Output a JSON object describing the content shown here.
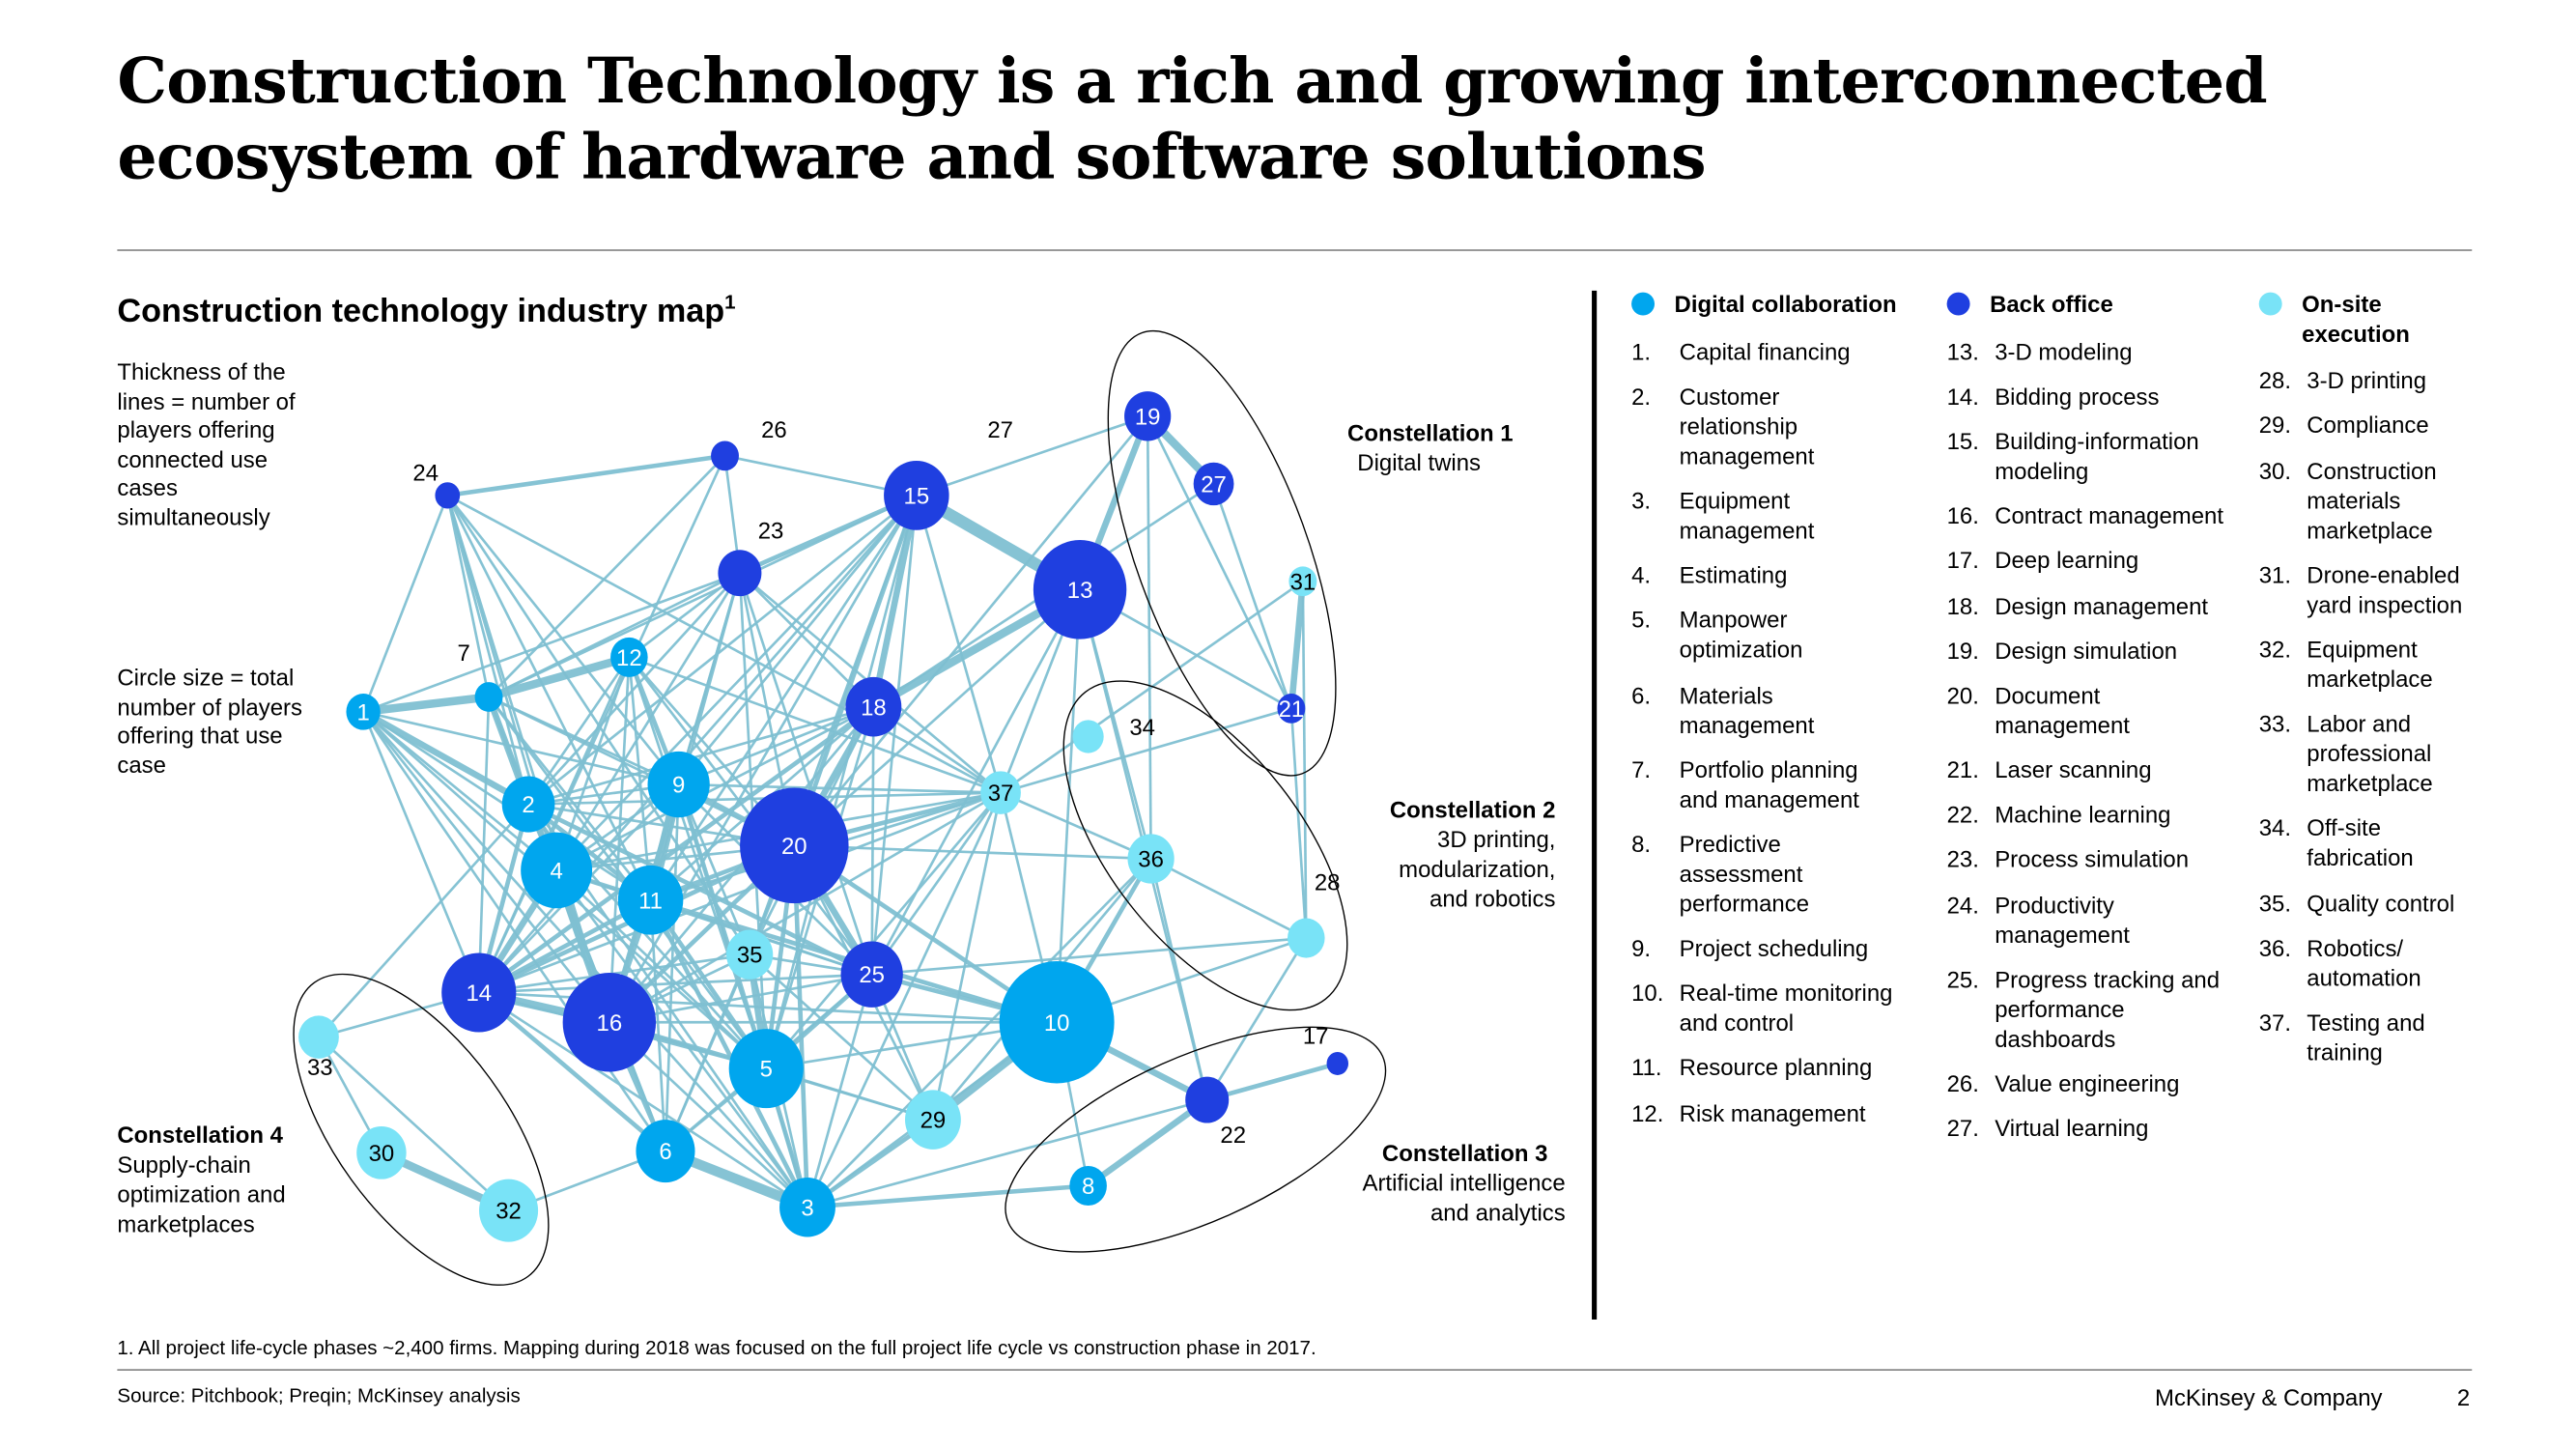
{
  "title": "Construction Technology is a rich and growing interconnected ecosystem of hardware and software solutions",
  "subtitle": "Construction technology industry map",
  "subtitle_sup": "1",
  "notes": {
    "thickness": "Thickness of  the lines =  number of players offering connected use cases simultaneously",
    "circle_size": "Circle size =  total number  of players offering that  use case"
  },
  "constellations": [
    {
      "title": "Constellation 1",
      "subtitle": "Digital twins"
    },
    {
      "title": "Constellation 2",
      "subtitle": "3D printing, modularization, and robotics"
    },
    {
      "title": "Constellation 3",
      "subtitle": "Artificial intelligence and analytics"
    },
    {
      "title": "Constellation 4",
      "subtitle": "Supply-chain optimization and marketplaces"
    }
  ],
  "colors": {
    "digital": "#00a6ee",
    "back_office": "#1f3fe0",
    "onsite": "#79e3f7",
    "edge": "#7fc0d2"
  },
  "legend": [
    {
      "heading": "Digital collaboration",
      "color": "#00a6ee",
      "items": [
        {
          "n": "1.",
          "t": "Capital financing"
        },
        {
          "n": "2.",
          "t": "Customer relationship management"
        },
        {
          "n": "3.",
          "t": "Equipment management"
        },
        {
          "n": "4.",
          "t": "Estimating"
        },
        {
          "n": "5.",
          "t": "Manpower optimization"
        },
        {
          "n": "6.",
          "t": "Materials management"
        },
        {
          "n": "7.",
          "t": "Portfolio planning and management"
        },
        {
          "n": "8.",
          "t": "Predictive assessment performance"
        },
        {
          "n": "9.",
          "t": "Project scheduling"
        },
        {
          "n": "10.",
          "t": "Real-time monitoring and control"
        },
        {
          "n": "11.",
          "t": "Resource planning"
        },
        {
          "n": "12.",
          "t": "Risk management"
        }
      ]
    },
    {
      "heading": "Back office",
      "color": "#1f3fe0",
      "items": [
        {
          "n": "13.",
          "t": "3-D modeling"
        },
        {
          "n": "14.",
          "t": "Bidding process"
        },
        {
          "n": "15.",
          "t": "Building-information modeling"
        },
        {
          "n": "16.",
          "t": "Contract management"
        },
        {
          "n": "17.",
          "t": "Deep learning"
        },
        {
          "n": "18.",
          "t": "Design management"
        },
        {
          "n": "19.",
          "t": "Design simulation"
        },
        {
          "n": "20.",
          "t": "Document management"
        },
        {
          "n": "21.",
          "t": "Laser scanning"
        },
        {
          "n": "22.",
          "t": "Machine learning"
        },
        {
          "n": "23.",
          "t": "Process simulation"
        },
        {
          "n": "24.",
          "t": "Productivity management"
        },
        {
          "n": "25.",
          "t": "Progress tracking and performance dashboards"
        },
        {
          "n": "26.",
          "t": "Value engineering"
        },
        {
          "n": "27.",
          "t": "Virtual learning"
        }
      ]
    },
    {
      "heading": "On-site execution",
      "color": "#79e3f7",
      "items": [
        {
          "n": "28.",
          "t": "3-D printing"
        },
        {
          "n": "29.",
          "t": "Compliance"
        },
        {
          "n": "30.",
          "t": "Construction materials marketplace"
        },
        {
          "n": "31.",
          "t": "Drone-enabled yard inspection"
        },
        {
          "n": "32.",
          "t": "Equipment marketplace"
        },
        {
          "n": "33.",
          "t": "Labor and professional marketplace"
        },
        {
          "n": "34.",
          "t": "Off-site fabrication"
        },
        {
          "n": "35.",
          "t": "Quality control"
        },
        {
          "n": "36.",
          "t": "Robotics/ automation"
        },
        {
          "n": "37.",
          "t": "Testing and training"
        }
      ]
    }
  ],
  "graph": {
    "nodes": [
      {
        "id": "1",
        "g": "digital"
      },
      {
        "id": "2",
        "g": "digital"
      },
      {
        "id": "3",
        "g": "digital"
      },
      {
        "id": "4",
        "g": "digital"
      },
      {
        "id": "5",
        "g": "digital"
      },
      {
        "id": "6",
        "g": "digital"
      },
      {
        "id": "7",
        "g": "digital"
      },
      {
        "id": "8",
        "g": "digital"
      },
      {
        "id": "9",
        "g": "digital"
      },
      {
        "id": "10",
        "g": "digital"
      },
      {
        "id": "11",
        "g": "digital"
      },
      {
        "id": "12",
        "g": "digital"
      },
      {
        "id": "13",
        "g": "back_office"
      },
      {
        "id": "14",
        "g": "back_office"
      },
      {
        "id": "15",
        "g": "back_office"
      },
      {
        "id": "16",
        "g": "back_office"
      },
      {
        "id": "17",
        "g": "back_office"
      },
      {
        "id": "18",
        "g": "back_office"
      },
      {
        "id": "19",
        "g": "back_office"
      },
      {
        "id": "20",
        "g": "back_office"
      },
      {
        "id": "21",
        "g": "back_office"
      },
      {
        "id": "22",
        "g": "back_office"
      },
      {
        "id": "23",
        "g": "back_office"
      },
      {
        "id": "24",
        "g": "back_office"
      },
      {
        "id": "25",
        "g": "back_office"
      },
      {
        "id": "26",
        "g": "back_office"
      },
      {
        "id": "27",
        "g": "back_office"
      },
      {
        "id": "28",
        "g": "onsite"
      },
      {
        "id": "29",
        "g": "onsite"
      },
      {
        "id": "30",
        "g": "onsite"
      },
      {
        "id": "31",
        "g": "onsite"
      },
      {
        "id": "32",
        "g": "onsite"
      },
      {
        "id": "33",
        "g": "onsite"
      },
      {
        "id": "34",
        "g": "onsite"
      },
      {
        "id": "35",
        "g": "onsite"
      },
      {
        "id": "36",
        "g": "onsite"
      },
      {
        "id": "37",
        "g": "onsite"
      }
    ],
    "extra_label": "27",
    "edges": [
      [
        "24",
        "26",
        2
      ],
      [
        "24",
        "1",
        1
      ],
      [
        "24",
        "7",
        1
      ],
      [
        "24",
        "2",
        1
      ],
      [
        "24",
        "4",
        1
      ],
      [
        "24",
        "9",
        1
      ],
      [
        "24",
        "11",
        1
      ],
      [
        "24",
        "16",
        1
      ],
      [
        "24",
        "37",
        1
      ],
      [
        "24",
        "35",
        1
      ],
      [
        "26",
        "15",
        1
      ],
      [
        "26",
        "23",
        1
      ],
      [
        "26",
        "7",
        1
      ],
      [
        "26",
        "14",
        1
      ],
      [
        "23",
        "15",
        2
      ],
      [
        "23",
        "1",
        1
      ],
      [
        "23",
        "7",
        1
      ],
      [
        "23",
        "12",
        1
      ],
      [
        "23",
        "2",
        1
      ],
      [
        "23",
        "4",
        1
      ],
      [
        "23",
        "9",
        1
      ],
      [
        "23",
        "11",
        1
      ],
      [
        "23",
        "20",
        1
      ],
      [
        "23",
        "16",
        1
      ],
      [
        "23",
        "25",
        1
      ],
      [
        "23",
        "37",
        1
      ],
      [
        "23",
        "5",
        1
      ],
      [
        "23",
        "18",
        1
      ],
      [
        "15",
        "13",
        6
      ],
      [
        "15",
        "19",
        1
      ],
      [
        "15",
        "18",
        3
      ],
      [
        "15",
        "20",
        2
      ],
      [
        "15",
        "9",
        1
      ],
      [
        "15",
        "4",
        1
      ],
      [
        "15",
        "11",
        1
      ],
      [
        "15",
        "14",
        1
      ],
      [
        "15",
        "2",
        1
      ],
      [
        "15",
        "16",
        1
      ],
      [
        "15",
        "25",
        1
      ],
      [
        "15",
        "37",
        1
      ],
      [
        "15",
        "5",
        1
      ],
      [
        "15",
        "35",
        1
      ],
      [
        "19",
        "27",
        4
      ],
      [
        "19",
        "13",
        3
      ],
      [
        "19",
        "21",
        1
      ],
      [
        "19",
        "36",
        1
      ],
      [
        "19",
        "20",
        1
      ],
      [
        "27",
        "18",
        1
      ],
      [
        "27",
        "21",
        1
      ],
      [
        "13",
        "18",
        4
      ],
      [
        "13",
        "21",
        1
      ],
      [
        "13",
        "36",
        1
      ],
      [
        "13",
        "20",
        1
      ],
      [
        "13",
        "37",
        1
      ],
      [
        "13",
        "10",
        1
      ],
      [
        "13",
        "22",
        1
      ],
      [
        "13",
        "25",
        1
      ],
      [
        "31",
        "21",
        3
      ],
      [
        "31",
        "37",
        1
      ],
      [
        "31",
        "28",
        1
      ],
      [
        "21",
        "37",
        1
      ],
      [
        "21",
        "28",
        1
      ],
      [
        "1",
        "7",
        4
      ],
      [
        "1",
        "2",
        3
      ],
      [
        "1",
        "4",
        1
      ],
      [
        "1",
        "14",
        1
      ],
      [
        "1",
        "11",
        1
      ],
      [
        "1",
        "9",
        1
      ],
      [
        "1",
        "16",
        1
      ],
      [
        "1",
        "6",
        1
      ],
      [
        "1",
        "3",
        1
      ],
      [
        "1",
        "5",
        1
      ],
      [
        "7",
        "12",
        4
      ],
      [
        "7",
        "2",
        3
      ],
      [
        "7",
        "4",
        1
      ],
      [
        "7",
        "11",
        1
      ],
      [
        "7",
        "9",
        1
      ],
      [
        "7",
        "14",
        1
      ],
      [
        "7",
        "20",
        1
      ],
      [
        "7",
        "16",
        1
      ],
      [
        "7",
        "5",
        1
      ],
      [
        "7",
        "6",
        1
      ],
      [
        "7",
        "15",
        1
      ],
      [
        "12",
        "9",
        2
      ],
      [
        "12",
        "2",
        1
      ],
      [
        "12",
        "4",
        1
      ],
      [
        "12",
        "11",
        1
      ],
      [
        "12",
        "20",
        1
      ],
      [
        "12",
        "37",
        1
      ],
      [
        "12",
        "14",
        1
      ],
      [
        "12",
        "16",
        1
      ],
      [
        "12",
        "25",
        1
      ],
      [
        "12",
        "5",
        1
      ],
      [
        "18",
        "20",
        3
      ],
      [
        "18",
        "9",
        1
      ],
      [
        "18",
        "2",
        1
      ],
      [
        "18",
        "4",
        1
      ],
      [
        "18",
        "11",
        1
      ],
      [
        "18",
        "14",
        2
      ],
      [
        "18",
        "16",
        1
      ],
      [
        "18",
        "25",
        1
      ],
      [
        "18",
        "5",
        1
      ],
      [
        "18",
        "37",
        1
      ],
      [
        "18",
        "35",
        1
      ],
      [
        "2",
        "4",
        3
      ],
      [
        "2",
        "9",
        1
      ],
      [
        "2",
        "11",
        2
      ],
      [
        "2",
        "14",
        2
      ],
      [
        "2",
        "16",
        1
      ],
      [
        "2",
        "20",
        1
      ],
      [
        "2",
        "25",
        2
      ],
      [
        "2",
        "5",
        1
      ],
      [
        "2",
        "6",
        1
      ],
      [
        "2",
        "3",
        1
      ],
      [
        "2",
        "37",
        1
      ],
      [
        "2",
        "33",
        1
      ],
      [
        "9",
        "11",
        5
      ],
      [
        "9",
        "20",
        2
      ],
      [
        "9",
        "4",
        1
      ],
      [
        "9",
        "14",
        1
      ],
      [
        "9",
        "16",
        2
      ],
      [
        "9",
        "25",
        1
      ],
      [
        "9",
        "5",
        2
      ],
      [
        "9",
        "3",
        1
      ],
      [
        "9",
        "6",
        1
      ],
      [
        "9",
        "37",
        1
      ],
      [
        "9",
        "35",
        1
      ],
      [
        "20",
        "37",
        2
      ],
      [
        "20",
        "36",
        1
      ],
      [
        "20",
        "10",
        2
      ],
      [
        "20",
        "25",
        3
      ],
      [
        "20",
        "11",
        2
      ],
      [
        "20",
        "4",
        1
      ],
      [
        "20",
        "14",
        2
      ],
      [
        "20",
        "16",
        2
      ],
      [
        "20",
        "5",
        2
      ],
      [
        "20",
        "3",
        2
      ],
      [
        "20",
        "6",
        1
      ],
      [
        "20",
        "29",
        1
      ],
      [
        "20",
        "35",
        1
      ],
      [
        "4",
        "11",
        2
      ],
      [
        "4",
        "14",
        3
      ],
      [
        "4",
        "16",
        4
      ],
      [
        "4",
        "5",
        1
      ],
      [
        "4",
        "6",
        1
      ],
      [
        "4",
        "3",
        1
      ],
      [
        "4",
        "37",
        1
      ],
      [
        "4",
        "25",
        1
      ],
      [
        "11",
        "14",
        2
      ],
      [
        "11",
        "16",
        2
      ],
      [
        "11",
        "5",
        2
      ],
      [
        "11",
        "25",
        1
      ],
      [
        "11",
        "3",
        2
      ],
      [
        "11",
        "6",
        1
      ],
      [
        "11",
        "37",
        1
      ],
      [
        "11",
        "10",
        2
      ],
      [
        "37",
        "36",
        1
      ],
      [
        "37",
        "10",
        1
      ],
      [
        "37",
        "25",
        1
      ],
      [
        "37",
        "5",
        1
      ],
      [
        "37",
        "3",
        1
      ],
      [
        "37",
        "14",
        1
      ],
      [
        "37",
        "29",
        1
      ],
      [
        "37",
        "16",
        1
      ],
      [
        "36",
        "10",
        2
      ],
      [
        "36",
        "28",
        1
      ],
      [
        "36",
        "3",
        1
      ],
      [
        "36",
        "29",
        1
      ],
      [
        "36",
        "22",
        1
      ],
      [
        "28",
        "10",
        1
      ],
      [
        "28",
        "25",
        1
      ],
      [
        "28",
        "22",
        1
      ],
      [
        "10",
        "22",
        3
      ],
      [
        "10",
        "8",
        1
      ],
      [
        "10",
        "29",
        4
      ],
      [
        "10",
        "25",
        2
      ],
      [
        "10",
        "3",
        1
      ],
      [
        "10",
        "14",
        1
      ],
      [
        "10",
        "16",
        1
      ],
      [
        "10",
        "5",
        1
      ],
      [
        "22",
        "17",
        2
      ],
      [
        "22",
        "8",
        3
      ],
      [
        "22",
        "3",
        1
      ],
      [
        "8",
        "3",
        2
      ],
      [
        "14",
        "16",
        4
      ],
      [
        "14",
        "6",
        2
      ],
      [
        "14",
        "3",
        1
      ],
      [
        "14",
        "33",
        1
      ],
      [
        "14",
        "5",
        1
      ],
      [
        "14",
        "25",
        1
      ],
      [
        "14",
        "35",
        1
      ],
      [
        "16",
        "6",
        2
      ],
      [
        "16",
        "5",
        2
      ],
      [
        "16",
        "3",
        1
      ],
      [
        "16",
        "25",
        1
      ],
      [
        "16",
        "29",
        1
      ],
      [
        "16",
        "35",
        1
      ],
      [
        "35",
        "5",
        3
      ],
      [
        "35",
        "3",
        1
      ],
      [
        "35",
        "25",
        1
      ],
      [
        "35",
        "6",
        1
      ],
      [
        "35",
        "29",
        1
      ],
      [
        "25",
        "5",
        2
      ],
      [
        "25",
        "29",
        1
      ],
      [
        "25",
        "3",
        1
      ],
      [
        "25",
        "6",
        1
      ],
      [
        "5",
        "3",
        2
      ],
      [
        "5",
        "6",
        1
      ],
      [
        "5",
        "29",
        1
      ],
      [
        "6",
        "3",
        5
      ],
      [
        "29",
        "3",
        2
      ],
      [
        "33",
        "30",
        1
      ],
      [
        "33",
        "32",
        1
      ],
      [
        "30",
        "32",
        4
      ],
      [
        "32",
        "6",
        1
      ]
    ]
  },
  "footer": {
    "footnote": "1. All project life-cycle phases ~2,400 firms. Mapping during 2018 was focused on the full project life cycle vs construction phase in 2017.",
    "source": "Source: Pitchbook; Preqin; McKinsey analysis",
    "brand": "McKinsey & Company",
    "page": "2"
  }
}
